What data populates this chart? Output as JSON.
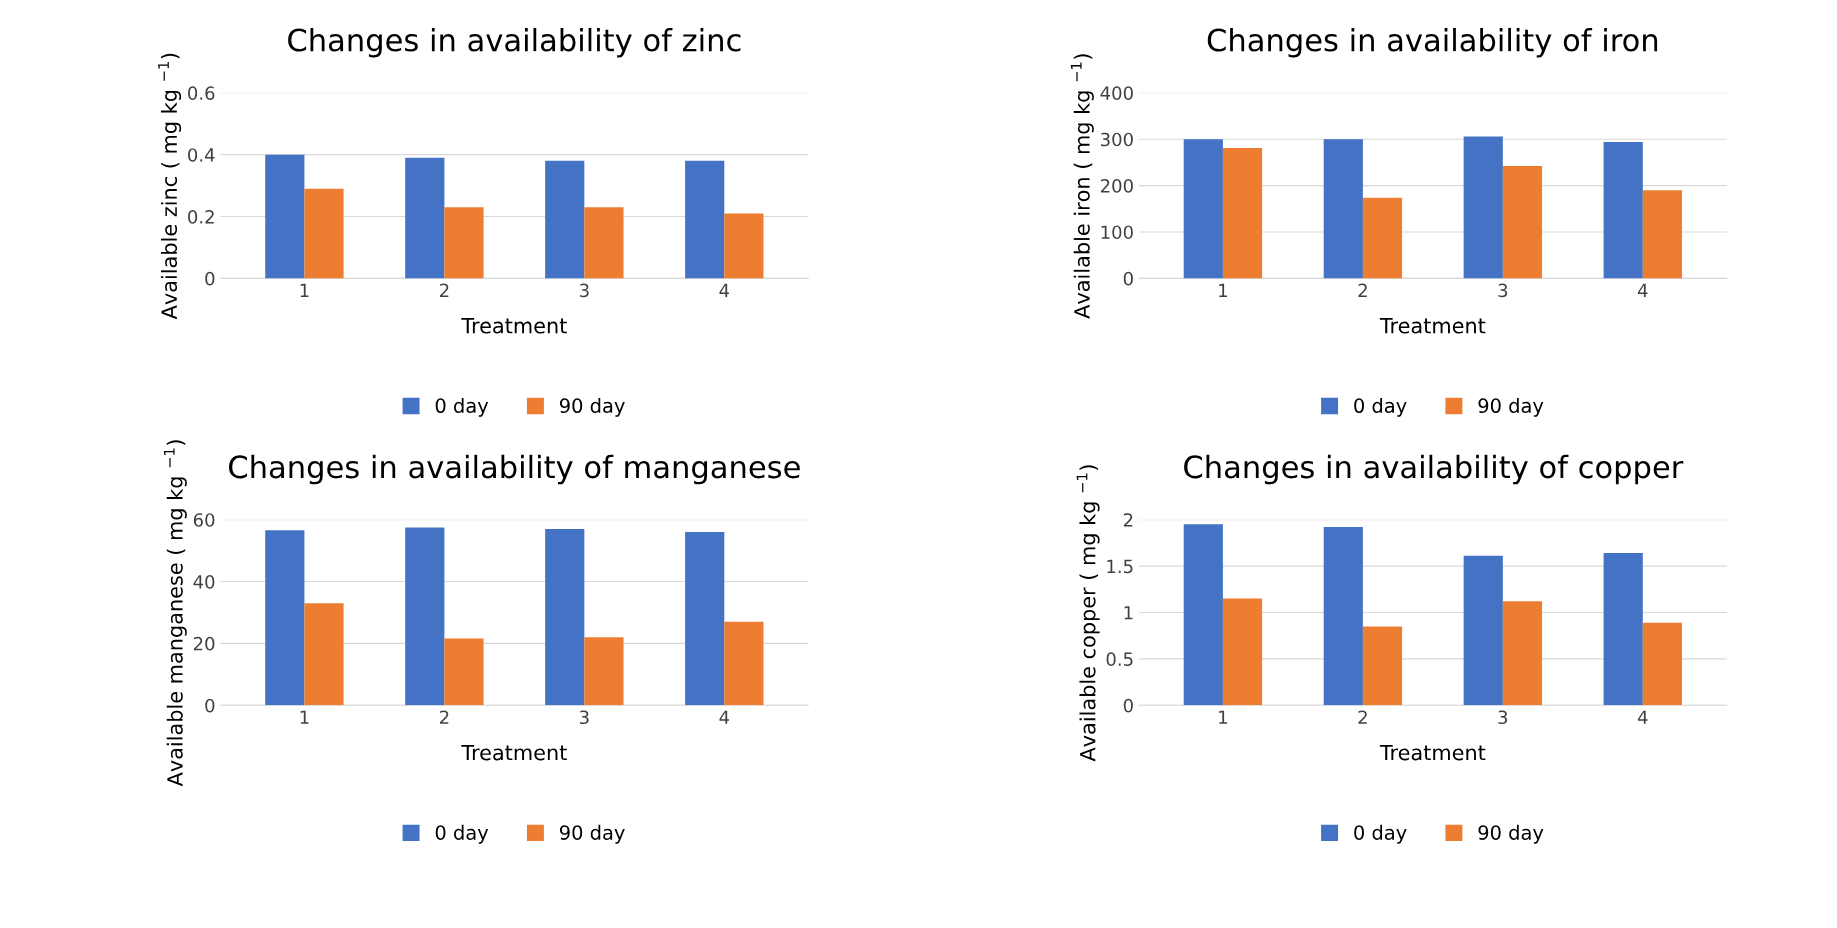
{
  "chart_data": [
    {
      "type": "bar",
      "title": "Changes in availability of zinc",
      "xlabel": "Treatment",
      "ylabel": "Available zinc ( mg kg $^{−1}$)",
      "categories": [
        "1",
        "2",
        "3",
        "4"
      ],
      "ylim": [
        0,
        0.6
      ],
      "yticks": [
        0,
        0.2,
        0.4,
        0.6
      ],
      "grid": "y",
      "legend": "bottom",
      "series": [
        {
          "name": "0 day",
          "color": "#4472c4",
          "values": [
            0.4,
            0.39,
            0.38,
            0.38
          ]
        },
        {
          "name": "90 day",
          "color": "#ed7d31",
          "values": [
            0.29,
            0.23,
            0.23,
            0.21
          ]
        }
      ]
    },
    {
      "type": "bar",
      "title": "Changes in availability of iron",
      "xlabel": "Treatment",
      "ylabel": "Available iron ( mg kg $^{−1}$)",
      "categories": [
        "1",
        "2",
        "3",
        "4"
      ],
      "ylim": [
        0,
        400
      ],
      "yticks": [
        0,
        100,
        200,
        300,
        400
      ],
      "grid": "y",
      "legend": "bottom",
      "series": [
        {
          "name": "0 day",
          "color": "#4472c4",
          "values": [
            300,
            300,
            306,
            294
          ]
        },
        {
          "name": "90 day",
          "color": "#ed7d31",
          "values": [
            281,
            174,
            242,
            190
          ]
        }
      ]
    },
    {
      "type": "bar",
      "title": "Changes in availability of manganese",
      "xlabel": "Treatment",
      "ylabel": "Available manganese ( mg kg $^{−1}$)",
      "categories": [
        "1",
        "2",
        "3",
        "4"
      ],
      "ylim": [
        0,
        60
      ],
      "yticks": [
        0,
        20,
        40,
        60
      ],
      "grid": "y",
      "legend": "bottom",
      "series": [
        {
          "name": "0 day",
          "color": "#4472c4",
          "values": [
            56.6,
            57.5,
            57,
            56
          ]
        },
        {
          "name": "90 day",
          "color": "#ed7d31",
          "values": [
            33,
            21.6,
            22,
            27
          ]
        }
      ]
    },
    {
      "type": "bar",
      "title": "Changes in availability of copper",
      "xlabel": "Treatment",
      "ylabel": "Available copper ( mg kg $^{−1}$)",
      "categories": [
        "1",
        "2",
        "3",
        "4"
      ],
      "ylim": [
        0,
        2
      ],
      "yticks": [
        0,
        {
          "value": 0.5,
          "label": "0.5"
        },
        1,
        {
          "value": 1.5,
          "label": "1.5"
        },
        2
      ],
      "grid": "y",
      "legend": "bottom",
      "series": [
        {
          "name": "0 day",
          "color": "#4472c4",
          "values": [
            1.95,
            1.92,
            1.61,
            1.64
          ]
        },
        {
          "name": "90 day",
          "color": "#ed7d31",
          "values": [
            1.15,
            0.85,
            1.12,
            0.89
          ]
        }
      ]
    }
  ]
}
